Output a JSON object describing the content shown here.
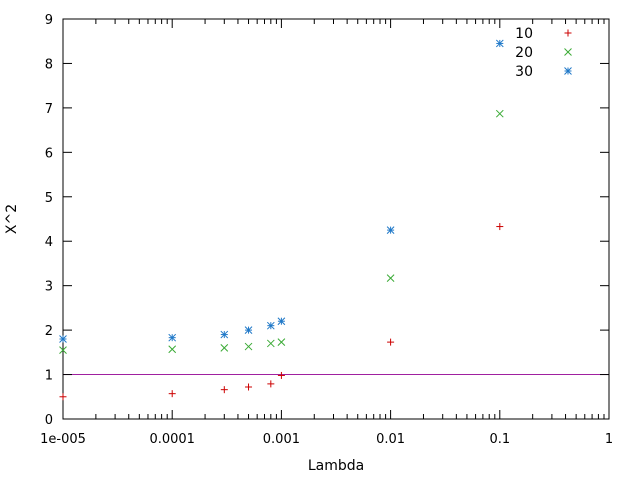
{
  "chart_data": {
    "type": "scatter",
    "title": "",
    "xlabel": "Lambda",
    "ylabel": "X^2",
    "xscale": "log",
    "xlim": [
      1e-05,
      1
    ],
    "ylim": [
      0,
      9
    ],
    "x_ticks": [
      {
        "value": 1e-05,
        "label": "1e-005"
      },
      {
        "value": 0.0001,
        "label": "0.0001"
      },
      {
        "value": 0.001,
        "label": "0.001"
      },
      {
        "value": 0.01,
        "label": "0.01"
      },
      {
        "value": 0.1,
        "label": "0.1"
      },
      {
        "value": 1,
        "label": "1"
      }
    ],
    "y_ticks": [
      {
        "value": 0,
        "label": "0"
      },
      {
        "value": 1,
        "label": "1"
      },
      {
        "value": 2,
        "label": "2"
      },
      {
        "value": 3,
        "label": "3"
      },
      {
        "value": 4,
        "label": "4"
      },
      {
        "value": 5,
        "label": "5"
      },
      {
        "value": 6,
        "label": "6"
      },
      {
        "value": 7,
        "label": "7"
      },
      {
        "value": 8,
        "label": "8"
      },
      {
        "value": 9,
        "label": "9"
      }
    ],
    "grid": false,
    "legend_position": "top-right",
    "reference_line": {
      "y": 1,
      "color": "#a020a0"
    },
    "series": [
      {
        "name": "10",
        "marker": "plus",
        "color": "#cc0000",
        "points": [
          {
            "x": 1e-05,
            "y": 0.5
          },
          {
            "x": 0.0001,
            "y": 0.57
          },
          {
            "x": 0.0003,
            "y": 0.66
          },
          {
            "x": 0.0005,
            "y": 0.72
          },
          {
            "x": 0.0008,
            "y": 0.79
          },
          {
            "x": 0.001,
            "y": 0.98
          },
          {
            "x": 0.01,
            "y": 1.73
          },
          {
            "x": 0.1,
            "y": 4.33
          }
        ]
      },
      {
        "name": "20",
        "marker": "cross",
        "color": "#3aaa35",
        "points": [
          {
            "x": 1e-05,
            "y": 1.55
          },
          {
            "x": 0.0001,
            "y": 1.57
          },
          {
            "x": 0.0003,
            "y": 1.6
          },
          {
            "x": 0.0005,
            "y": 1.63
          },
          {
            "x": 0.0008,
            "y": 1.7
          },
          {
            "x": 0.001,
            "y": 1.73
          },
          {
            "x": 0.01,
            "y": 3.17
          },
          {
            "x": 0.1,
            "y": 6.87
          }
        ]
      },
      {
        "name": "30",
        "marker": "star",
        "color": "#1f78c8",
        "points": [
          {
            "x": 1e-05,
            "y": 1.8
          },
          {
            "x": 0.0001,
            "y": 1.83
          },
          {
            "x": 0.0003,
            "y": 1.9
          },
          {
            "x": 0.0005,
            "y": 2.0
          },
          {
            "x": 0.0008,
            "y": 2.1
          },
          {
            "x": 0.001,
            "y": 2.2
          },
          {
            "x": 0.01,
            "y": 4.25
          },
          {
            "x": 0.1,
            "y": 8.45
          }
        ]
      }
    ]
  }
}
